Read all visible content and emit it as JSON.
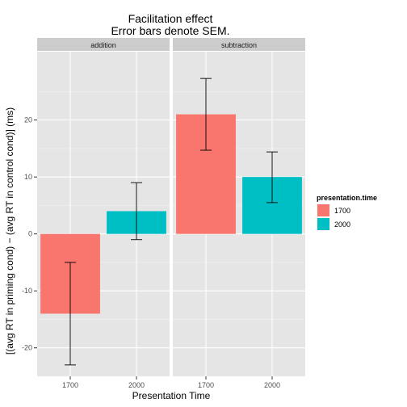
{
  "chart_data": {
    "type": "bar",
    "title": "Facilitation effect",
    "subtitle": "Error bars denote SEM.",
    "xlabel": "Presentation Time",
    "ylabel": "[(avg RT in priming cond) − (avg RT in control cond)] (ms)",
    "ylim": [
      -25,
      32
    ],
    "yticks": [
      -20,
      -10,
      0,
      10,
      20
    ],
    "categories": [
      "1700",
      "2000"
    ],
    "grid": true,
    "legend": {
      "title": "presentation.time",
      "position": "right",
      "entries": [
        "1700",
        "2000"
      ]
    },
    "colors": {
      "1700": "#F8766D",
      "2000": "#00BFC4"
    },
    "panels": [
      {
        "name": "addition",
        "bars": [
          {
            "x": "1700",
            "value": -14.0,
            "err_low": -23.0,
            "err_high": -5.0
          },
          {
            "x": "2000",
            "value": 4.0,
            "err_low": -1.0,
            "err_high": 9.0
          }
        ]
      },
      {
        "name": "subtraction",
        "bars": [
          {
            "x": "1700",
            "value": 21.0,
            "err_low": 14.7,
            "err_high": 27.3
          },
          {
            "x": "2000",
            "value": 10.0,
            "err_low": 5.5,
            "err_high": 14.4
          }
        ]
      }
    ]
  }
}
